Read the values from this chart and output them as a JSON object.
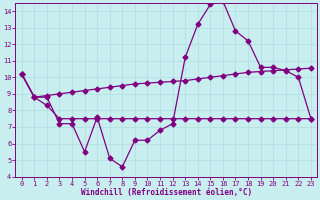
{
  "xlabel": "Windchill (Refroidissement éolien,°C)",
  "bg_color": "#c8eef0",
  "line_color": "#800080",
  "grid_color": "#b0dde0",
  "xlim": [
    -0.5,
    23.5
  ],
  "ylim": [
    4,
    14.5
  ],
  "xticks": [
    0,
    1,
    2,
    3,
    4,
    5,
    6,
    7,
    8,
    9,
    10,
    11,
    12,
    13,
    14,
    15,
    16,
    17,
    18,
    19,
    20,
    21,
    22,
    23
  ],
  "yticks": [
    4,
    5,
    6,
    7,
    8,
    9,
    10,
    11,
    12,
    13,
    14
  ],
  "line1_x": [
    0,
    1,
    2,
    3,
    4,
    5,
    6,
    7,
    8,
    9,
    10,
    11,
    12,
    13,
    14,
    15,
    16,
    17,
    18,
    19,
    20,
    21,
    22,
    23
  ],
  "line1_y": [
    10.2,
    8.8,
    8.8,
    7.2,
    7.2,
    5.5,
    7.6,
    5.1,
    4.6,
    6.2,
    6.2,
    6.8,
    7.2,
    11.2,
    13.2,
    14.4,
    14.6,
    12.8,
    12.2,
    10.6,
    10.6,
    10.4,
    10.0,
    7.5
  ],
  "line2_x": [
    0,
    1,
    2,
    3,
    4,
    5,
    6,
    7,
    8,
    9,
    10,
    11,
    12,
    13,
    14,
    15,
    16,
    17,
    18,
    19,
    20,
    21,
    22,
    23
  ],
  "line2_y": [
    10.2,
    8.8,
    8.9,
    9.0,
    9.1,
    9.2,
    9.3,
    9.4,
    9.5,
    9.6,
    9.65,
    9.7,
    9.75,
    9.8,
    9.9,
    10.0,
    10.1,
    10.2,
    10.3,
    10.35,
    10.4,
    10.45,
    10.5,
    10.55
  ],
  "line3_x": [
    0,
    1,
    2,
    3,
    4,
    5,
    6,
    7,
    8,
    9,
    10,
    11,
    12,
    13,
    14,
    15,
    16,
    17,
    18,
    19,
    20,
    21,
    22,
    23
  ],
  "line3_y": [
    10.2,
    8.8,
    8.3,
    7.5,
    7.5,
    7.5,
    7.5,
    7.5,
    7.5,
    7.5,
    7.5,
    7.5,
    7.5,
    7.5,
    7.5,
    7.5,
    7.5,
    7.5,
    7.5,
    7.5,
    7.5,
    7.5,
    7.5,
    7.5
  ],
  "marker": "D",
  "markersize": 2.5,
  "linewidth": 0.9,
  "tick_fontsize": 5.0,
  "label_fontsize": 5.5
}
